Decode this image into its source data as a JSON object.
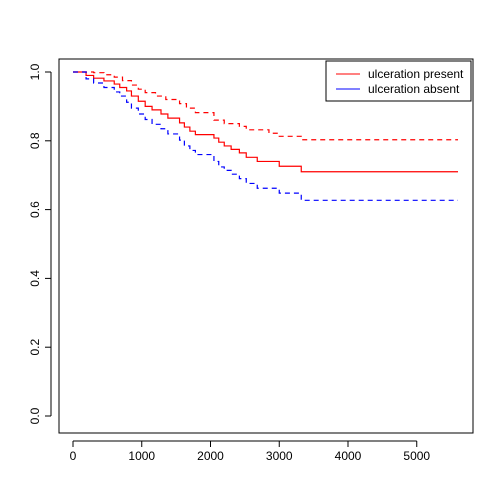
{
  "chart_data": {
    "type": "line",
    "title": "",
    "xlabel": "",
    "ylabel": "",
    "xlim": [
      0,
      5600
    ],
    "ylim": [
      0.0,
      1.0
    ],
    "x_ticks": [
      0,
      1000,
      2000,
      3000,
      4000,
      5000
    ],
    "x_tick_labels": [
      "0",
      "1000",
      "2000",
      "3000",
      "4000",
      "5000"
    ],
    "y_ticks": [
      0.0,
      0.2,
      0.4,
      0.6,
      0.8,
      1.0
    ],
    "y_tick_labels": [
      "0.0",
      "0.2",
      "0.4",
      "0.6",
      "0.8",
      "1.0"
    ],
    "grid": false,
    "legend_position": "top-right",
    "legend": [
      {
        "label": "ulceration present",
        "color": "#ff0000"
      },
      {
        "label": "ulceration absent",
        "color": "#0000ff"
      }
    ],
    "series": [
      {
        "name": "ulceration present",
        "color": "#ff0000",
        "dash": "solid",
        "step": true,
        "points": [
          [
            0,
            1.0
          ],
          [
            190,
            1.0
          ],
          [
            190,
            0.99
          ],
          [
            300,
            0.99
          ],
          [
            300,
            0.982
          ],
          [
            450,
            0.982
          ],
          [
            450,
            0.974
          ],
          [
            600,
            0.974
          ],
          [
            600,
            0.965
          ],
          [
            680,
            0.965
          ],
          [
            680,
            0.955
          ],
          [
            780,
            0.955
          ],
          [
            780,
            0.945
          ],
          [
            850,
            0.945
          ],
          [
            850,
            0.93
          ],
          [
            950,
            0.93
          ],
          [
            950,
            0.915
          ],
          [
            1050,
            0.915
          ],
          [
            1050,
            0.9
          ],
          [
            1150,
            0.9
          ],
          [
            1150,
            0.89
          ],
          [
            1280,
            0.89
          ],
          [
            1280,
            0.878
          ],
          [
            1380,
            0.878
          ],
          [
            1380,
            0.866
          ],
          [
            1550,
            0.866
          ],
          [
            1550,
            0.852
          ],
          [
            1620,
            0.852
          ],
          [
            1620,
            0.84
          ],
          [
            1700,
            0.84
          ],
          [
            1700,
            0.828
          ],
          [
            1780,
            0.828
          ],
          [
            1780,
            0.818
          ],
          [
            2050,
            0.818
          ],
          [
            2050,
            0.808
          ],
          [
            2120,
            0.808
          ],
          [
            2120,
            0.796
          ],
          [
            2200,
            0.796
          ],
          [
            2200,
            0.785
          ],
          [
            2300,
            0.785
          ],
          [
            2300,
            0.775
          ],
          [
            2420,
            0.775
          ],
          [
            2420,
            0.765
          ],
          [
            2520,
            0.765
          ],
          [
            2520,
            0.752
          ],
          [
            2680,
            0.752
          ],
          [
            2680,
            0.74
          ],
          [
            3000,
            0.74
          ],
          [
            3000,
            0.726
          ],
          [
            3320,
            0.726
          ],
          [
            3320,
            0.71
          ],
          [
            5600,
            0.71
          ]
        ]
      },
      {
        "name": "ulceration present (upper CI)",
        "color": "#ff0000",
        "dash": "dashed",
        "step": true,
        "points": [
          [
            0,
            1.0
          ],
          [
            300,
            1.0
          ],
          [
            300,
            0.998
          ],
          [
            450,
            0.998
          ],
          [
            450,
            0.992
          ],
          [
            600,
            0.992
          ],
          [
            600,
            0.985
          ],
          [
            720,
            0.985
          ],
          [
            720,
            0.975
          ],
          [
            850,
            0.975
          ],
          [
            850,
            0.962
          ],
          [
            950,
            0.962
          ],
          [
            950,
            0.95
          ],
          [
            1050,
            0.95
          ],
          [
            1050,
            0.94
          ],
          [
            1200,
            0.94
          ],
          [
            1200,
            0.93
          ],
          [
            1350,
            0.93
          ],
          [
            1350,
            0.92
          ],
          [
            1550,
            0.92
          ],
          [
            1550,
            0.908
          ],
          [
            1650,
            0.908
          ],
          [
            1650,
            0.895
          ],
          [
            1780,
            0.895
          ],
          [
            1780,
            0.882
          ],
          [
            2050,
            0.882
          ],
          [
            2050,
            0.86
          ],
          [
            2200,
            0.86
          ],
          [
            2200,
            0.85
          ],
          [
            2420,
            0.85
          ],
          [
            2420,
            0.842
          ],
          [
            2520,
            0.842
          ],
          [
            2520,
            0.832
          ],
          [
            2850,
            0.832
          ],
          [
            2850,
            0.822
          ],
          [
            3000,
            0.822
          ],
          [
            3000,
            0.813
          ],
          [
            3320,
            0.813
          ],
          [
            3320,
            0.803
          ],
          [
            5600,
            0.803
          ]
        ]
      },
      {
        "name": "ulceration absent",
        "color": "#0000ff",
        "dash": "dashed",
        "step": true,
        "points": [
          [
            0,
            1.0
          ],
          [
            190,
            1.0
          ],
          [
            190,
            0.98
          ],
          [
            300,
            0.98
          ],
          [
            300,
            0.968
          ],
          [
            450,
            0.968
          ],
          [
            450,
            0.955
          ],
          [
            600,
            0.955
          ],
          [
            600,
            0.942
          ],
          [
            680,
            0.942
          ],
          [
            680,
            0.93
          ],
          [
            780,
            0.93
          ],
          [
            780,
            0.912
          ],
          [
            850,
            0.912
          ],
          [
            850,
            0.895
          ],
          [
            950,
            0.895
          ],
          [
            950,
            0.878
          ],
          [
            1050,
            0.878
          ],
          [
            1050,
            0.862
          ],
          [
            1150,
            0.862
          ],
          [
            1150,
            0.848
          ],
          [
            1280,
            0.848
          ],
          [
            1280,
            0.835
          ],
          [
            1380,
            0.835
          ],
          [
            1380,
            0.82
          ],
          [
            1550,
            0.82
          ],
          [
            1550,
            0.802
          ],
          [
            1620,
            0.802
          ],
          [
            1620,
            0.785
          ],
          [
            1700,
            0.785
          ],
          [
            1700,
            0.772
          ],
          [
            1780,
            0.772
          ],
          [
            1780,
            0.76
          ],
          [
            2050,
            0.76
          ],
          [
            2050,
            0.74
          ],
          [
            2120,
            0.74
          ],
          [
            2120,
            0.724
          ],
          [
            2200,
            0.724
          ],
          [
            2200,
            0.714
          ],
          [
            2300,
            0.714
          ],
          [
            2300,
            0.703
          ],
          [
            2420,
            0.703
          ],
          [
            2420,
            0.69
          ],
          [
            2520,
            0.69
          ],
          [
            2520,
            0.676
          ],
          [
            2680,
            0.676
          ],
          [
            2680,
            0.662
          ],
          [
            3000,
            0.662
          ],
          [
            3000,
            0.648
          ],
          [
            3320,
            0.648
          ],
          [
            3320,
            0.627
          ],
          [
            5600,
            0.627
          ]
        ]
      }
    ]
  }
}
